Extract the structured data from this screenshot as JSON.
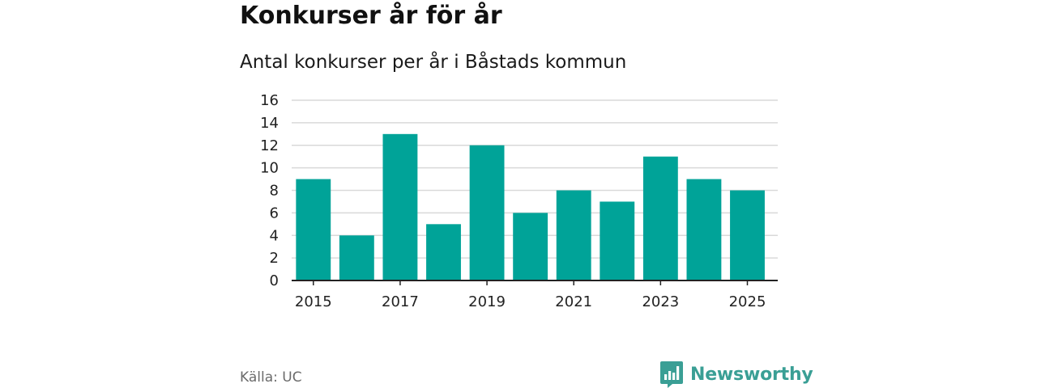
{
  "title": "Konkurser år för år",
  "subtitle": "Antal konkurser per år i Båstads kommun",
  "source": "Källa: UC",
  "brand": {
    "name": "Newsworthy",
    "color": "#3a9f95",
    "icon": "newsworthy-logo-icon"
  },
  "colors": {
    "bar": "#00a398",
    "grid": "#d9d9d9",
    "axis": "#222222"
  },
  "chart_data": {
    "type": "bar",
    "title": "Konkurser år för år",
    "subtitle": "Antal konkurser per år i Båstads kommun",
    "xlabel": "",
    "ylabel": "",
    "categories": [
      "2015",
      "2016",
      "2017",
      "2018",
      "2019",
      "2020",
      "2021",
      "2022",
      "2023",
      "2024",
      "2025"
    ],
    "values": [
      9,
      4,
      13,
      5,
      12,
      6,
      8,
      7,
      11,
      9,
      8
    ],
    "x_tick_labels": [
      "2015",
      "2017",
      "2019",
      "2021",
      "2023",
      "2025"
    ],
    "y_ticks": [
      0,
      2,
      4,
      6,
      8,
      10,
      12,
      14,
      16
    ],
    "ylim": [
      0,
      16
    ],
    "grid": true,
    "legend": "none"
  }
}
